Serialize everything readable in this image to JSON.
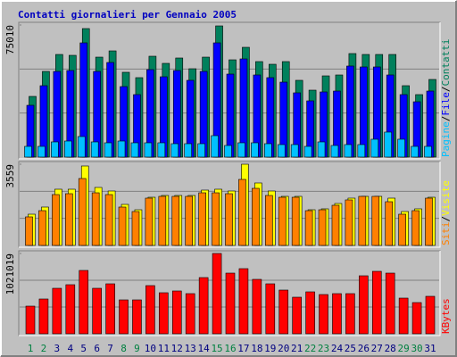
{
  "chart_data": [
    {
      "type": "bar",
      "title": "Contatti giornalieri per Gennaio 2005",
      "ylim": [
        0,
        75010
      ],
      "yticks": [
        75010
      ],
      "legend_separator": "/",
      "series": [
        {
          "name": "Pagine",
          "color": "#00c0ff",
          "values": [
            6080,
            6080,
            8620,
            9120,
            11660,
            8620,
            8110,
            9120,
            8110,
            8110,
            8110,
            7600,
            7600,
            7600,
            12160,
            6590,
            8110,
            8110,
            7600,
            7100,
            7100,
            6080,
            8620,
            6590,
            7100,
            7100,
            10140,
            14190,
            10140,
            6080,
            6080
          ]
        },
        {
          "name": "File",
          "color": "#0000ff",
          "values": [
            29400,
            40540,
            48650,
            49160,
            64870,
            48650,
            53720,
            40040,
            35480,
            49670,
            45610,
            49160,
            43590,
            48650,
            64870,
            47130,
            55750,
            46630,
            45110,
            42570,
            36490,
            31930,
            37000,
            37500,
            51700,
            51190,
            51190,
            46630,
            35480,
            31420,
            37500
          ]
        },
        {
          "name": "Contatti",
          "color": "#00805c",
          "values": [
            34460,
            48650,
            58280,
            57780,
            72980,
            56760,
            60310,
            48150,
            45110,
            57270,
            53220,
            56260,
            50170,
            56760,
            74500,
            55240,
            62340,
            54230,
            52710,
            54230,
            43590,
            38010,
            46120,
            46630,
            58790,
            58280,
            58280,
            58280,
            40550,
            35480,
            44090
          ]
        }
      ]
    },
    {
      "type": "bar",
      "ylim": [
        0,
        3559
      ],
      "yticks": [
        3559
      ],
      "legend_separator": "/",
      "series": [
        {
          "name": "Siti",
          "color": "#ff8000",
          "values": [
            1252,
            1525,
            2229,
            2268,
            2933,
            2307,
            2229,
            1682,
            1486,
            2073,
            2151,
            2151,
            2151,
            2307,
            2307,
            2268,
            2894,
            2503,
            2190,
            2112,
            2112,
            1525,
            1564,
            1760,
            1995,
            2151,
            2151,
            1916,
            1369,
            1525,
            2073
          ]
        },
        {
          "name": "Visite",
          "color": "#ffff00",
          "values": [
            1369,
            1682,
            2464,
            2464,
            3481,
            2542,
            2386,
            1799,
            1564,
            2112,
            2190,
            2190,
            2190,
            2425,
            2464,
            2386,
            3559,
            2738,
            2386,
            2151,
            2151,
            1564,
            1604,
            1838,
            2073,
            2151,
            2151,
            2073,
            1486,
            1604,
            2112
          ]
        }
      ]
    },
    {
      "type": "bar",
      "ylim": [
        0,
        1021019
      ],
      "yticks": [
        1021019
      ],
      "categories": [
        "1",
        "2",
        "3",
        "4",
        "5",
        "6",
        "7",
        "8",
        "9",
        "10",
        "11",
        "12",
        "13",
        "14",
        "15",
        "16",
        "17",
        "18",
        "19",
        "20",
        "21",
        "22",
        "23",
        "24",
        "25",
        "26",
        "27",
        "28",
        "29",
        "30",
        "31"
      ],
      "category_colors": [
        "#008040",
        "#008040",
        "#000080",
        "#000080",
        "#000080",
        "#000080",
        "#000080",
        "#008040",
        "#008040",
        "#000080",
        "#000080",
        "#000080",
        "#000080",
        "#000080",
        "#008040",
        "#008040",
        "#000080",
        "#000080",
        "#000080",
        "#000080",
        "#000080",
        "#008040",
        "#008040",
        "#000080",
        "#000080",
        "#000080",
        "#000080",
        "#000080",
        "#008040",
        "#008040",
        "#000080"
      ],
      "series": [
        {
          "name": "KBytes",
          "color": "#ff0000",
          "values": [
            351700,
            442450,
            578600,
            623980,
            805500,
            578600,
            635320,
            431110,
            431110,
            612630,
            521870,
            544560,
            510530,
            714740,
            1021019,
            771460,
            828190,
            692050,
            635320,
            555910,
            465150,
            533220,
            499180,
            510530,
            510530,
            737430,
            794150,
            771460,
            453800,
            397080,
            476490
          ]
        }
      ]
    }
  ]
}
